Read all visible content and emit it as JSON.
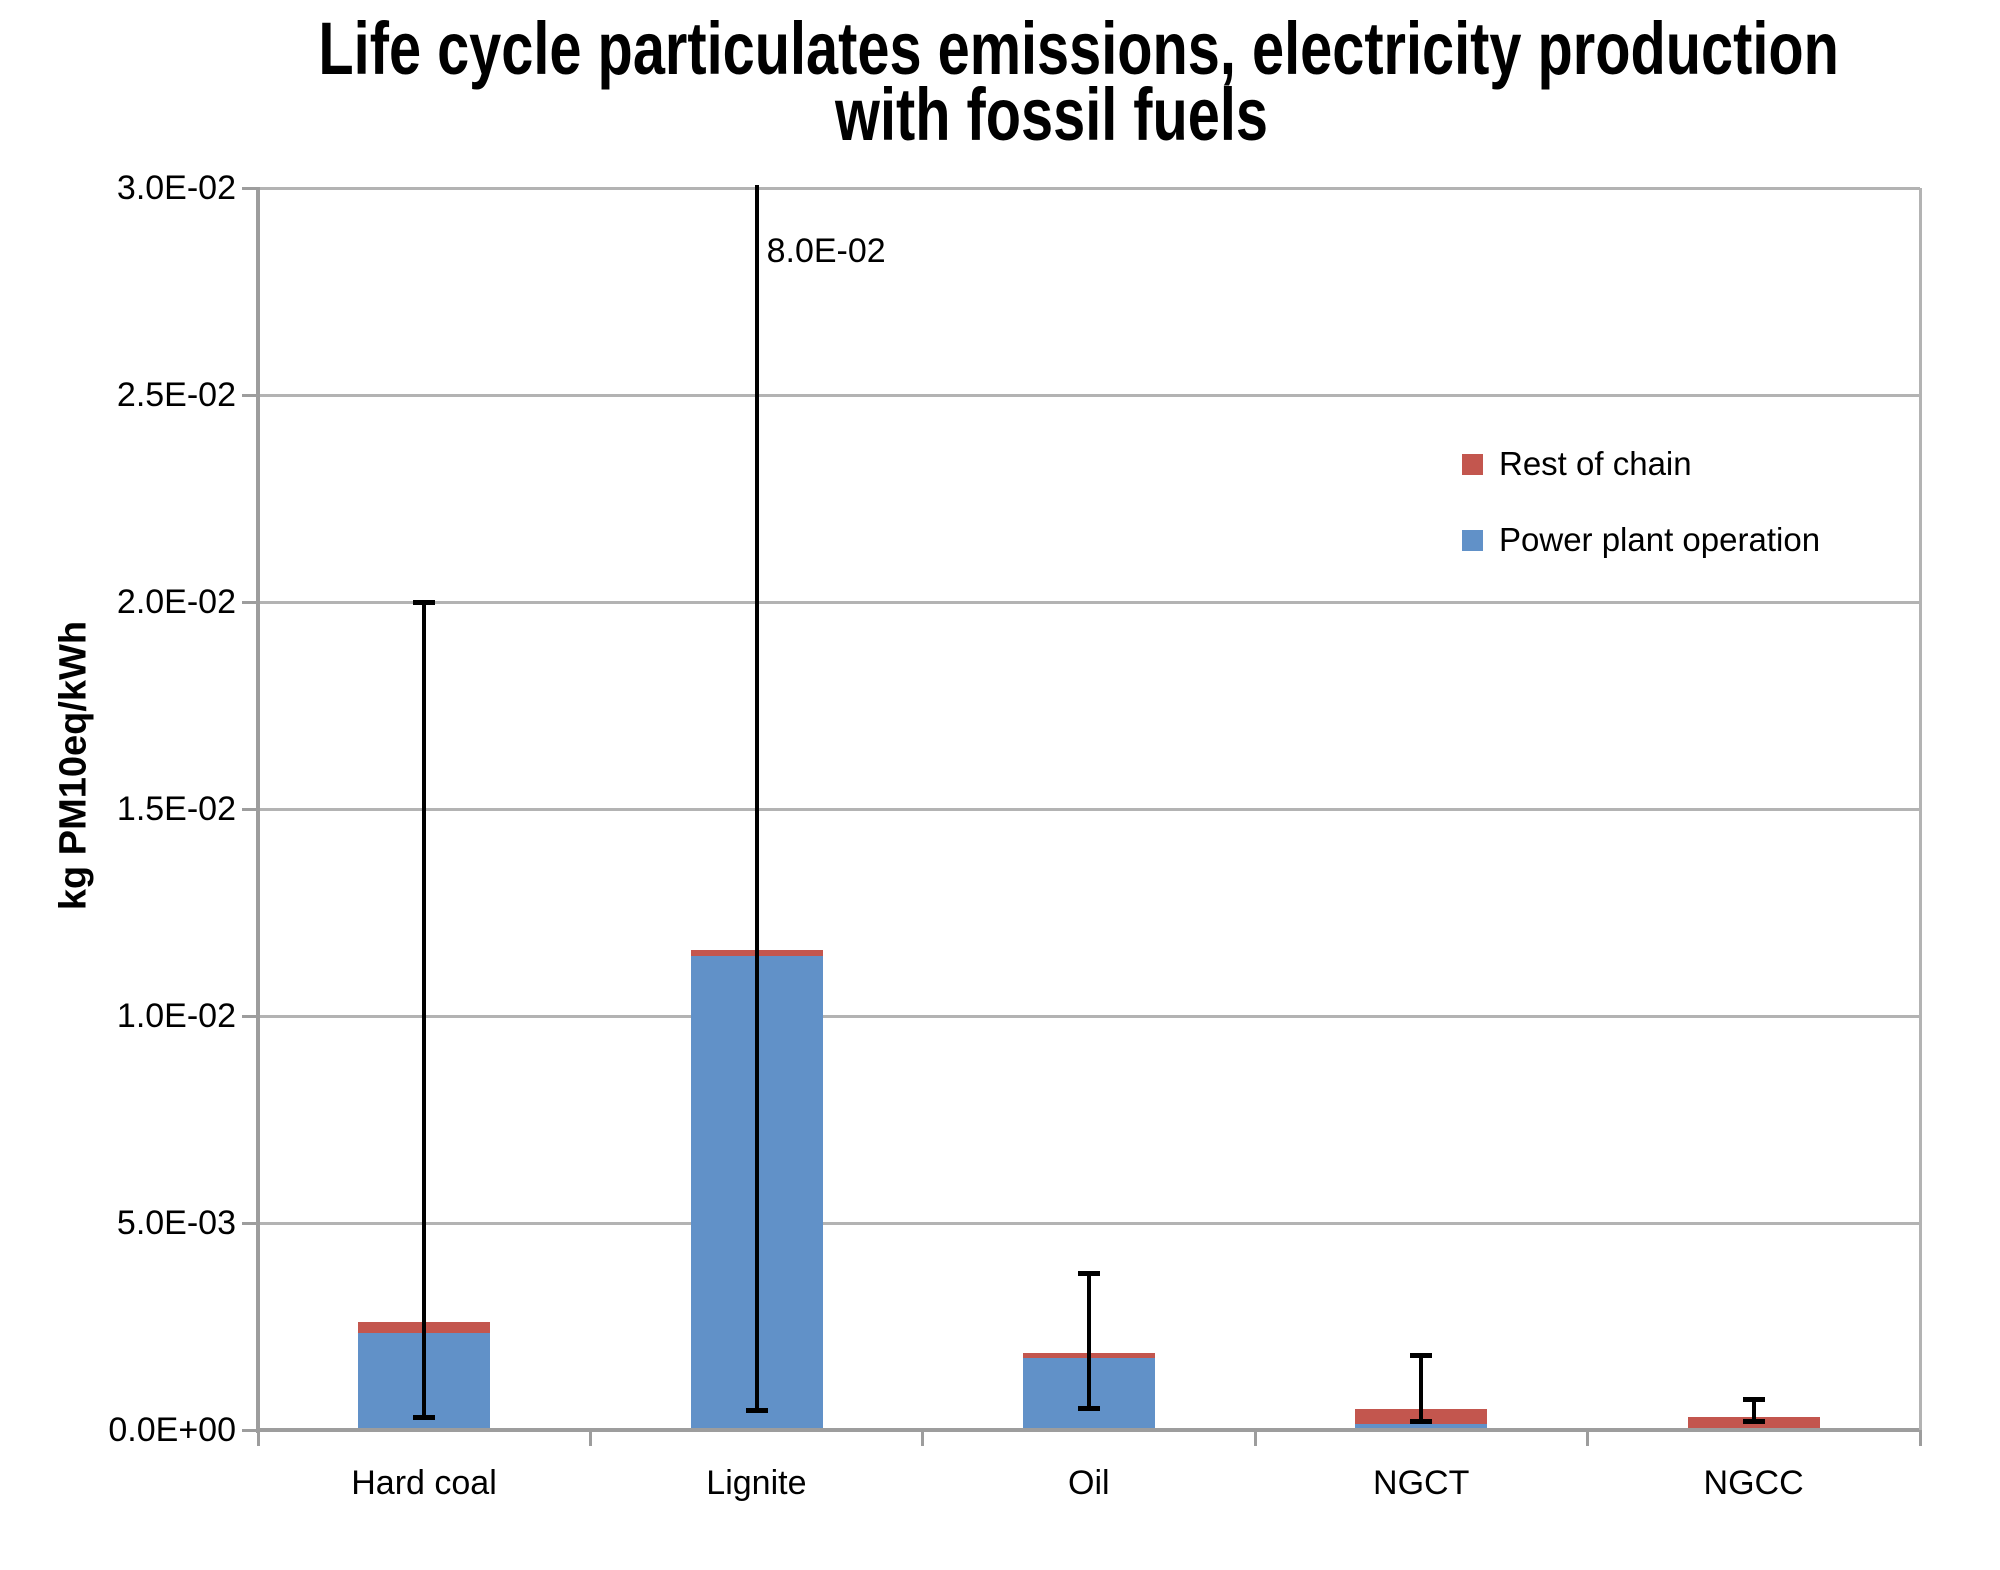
{
  "title_lines": [
    "Life cycle particulates emissions, electricity production",
    "with fossil fuels"
  ],
  "chart_data": {
    "type": "bar",
    "stacked": true,
    "title": "Life cycle particulates emissions, electricity production with fossil fuels",
    "xlabel": "",
    "ylabel": "kg PM10eq/kWh",
    "ylim": [
      0,
      0.03
    ],
    "grid": true,
    "yticks": [
      {
        "value": 0.0,
        "label": "0.0E+00"
      },
      {
        "value": 0.005,
        "label": "5.0E-03"
      },
      {
        "value": 0.01,
        "label": "1.0E-02"
      },
      {
        "value": 0.015,
        "label": "1.5E-02"
      },
      {
        "value": 0.02,
        "label": "2.0E-02"
      },
      {
        "value": 0.025,
        "label": "2.5E-02"
      },
      {
        "value": 0.03,
        "label": "3.0E-02"
      }
    ],
    "categories": [
      "Hard coal",
      "Lignite",
      "Oil",
      "NGCT",
      "NGCC"
    ],
    "series": [
      {
        "name": "Power plant operation",
        "color": "#6191c8",
        "values": [
          0.0023,
          0.0114,
          0.0017,
          0.0001,
          0.0
        ]
      },
      {
        "name": "Rest of chain",
        "color": "#c3564e",
        "values": [
          0.00025,
          0.00015,
          0.00012,
          0.00035,
          0.00027
        ]
      }
    ],
    "totals": [
      0.00255,
      0.01155,
      0.00182,
      0.00045,
      0.00027
    ],
    "error_bars": {
      "low": [
        0.0003,
        0.00045,
        0.0005,
        0.0002,
        0.0002
      ],
      "high": [
        0.02,
        0.08,
        0.0038,
        0.0018,
        0.00075
      ]
    },
    "annotation": {
      "text": "8.0E-02",
      "category": "Lignite",
      "meaning": "off-scale upper error bound for Lignite"
    },
    "legend": {
      "position": "upper right",
      "entries": [
        {
          "label": "Rest of chain",
          "color": "#c3564e"
        },
        {
          "label": "Power plant operation",
          "color": "#6191c8"
        }
      ]
    }
  },
  "colors": {
    "grid": "#b3b3b3",
    "axis": "#9d9d9d",
    "error_bar": "#000000",
    "background": "#ffffff",
    "text": "#000000"
  }
}
